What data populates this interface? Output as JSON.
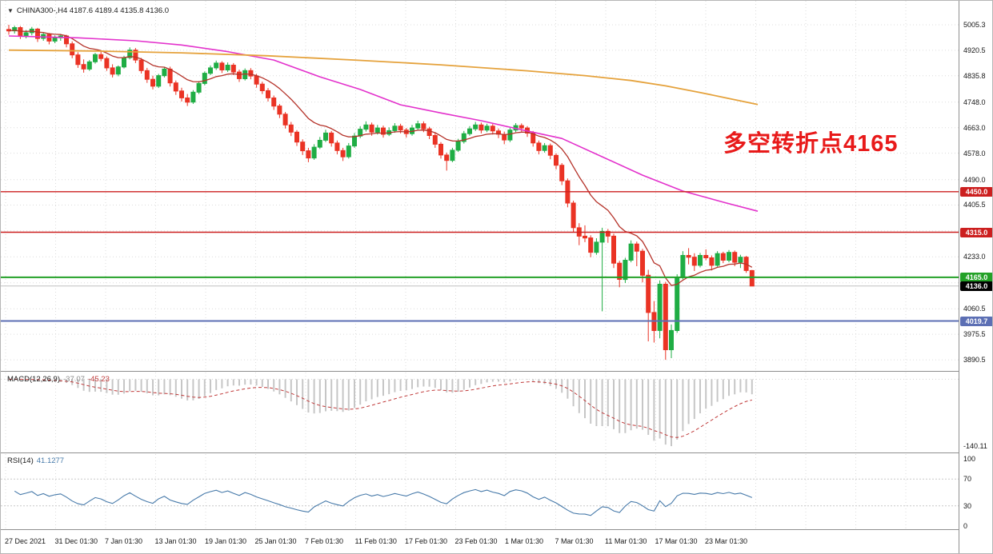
{
  "colors": {
    "up": "#1fad44",
    "down": "#ea3324",
    "ma_fast": "#b5332a",
    "ma_mid": "#e332cc",
    "ma_slow": "#e5a23c",
    "grid": "#dcdcdc",
    "current_line": "#c0c0c0",
    "macd_hist": "#c6c6c6",
    "macd_signal": "#c03a3a",
    "rsi_line": "#4679a9",
    "annotation": "#e81a1a"
  },
  "header": {
    "marker": "▼",
    "symbol_info": "CHINA300-,H4  4187.6 4189.4 4135.8 4136.0"
  },
  "annotation": {
    "text": "多空转折点4165"
  },
  "indicators": {
    "macd": {
      "label": "MACD(12,26,9)",
      "value_main": "-37.07",
      "value_signal": "-45.23",
      "axis_min_label": "-140.11"
    },
    "rsi": {
      "label": "RSI(14)",
      "value": "41.1277",
      "axis_labels": [
        "100",
        "70",
        "30",
        "0"
      ],
      "levels": [
        70,
        30
      ]
    }
  },
  "price_axis": {
    "ticks": [
      {
        "label": "5005.3",
        "price": 5005.3
      },
      {
        "label": "4920.5",
        "price": 4920.5
      },
      {
        "label": "4835.8",
        "price": 4835.8
      },
      {
        "label": "4748.0",
        "price": 4748.0
      },
      {
        "label": "4663.0",
        "price": 4663.0
      },
      {
        "label": "4578.0",
        "price": 4578.0
      },
      {
        "label": "4490.0",
        "price": 4490.0
      },
      {
        "label": "4405.5",
        "price": 4405.5
      },
      {
        "label": "4233.0",
        "price": 4233.0
      },
      {
        "label": "4060.5",
        "price": 4060.5
      },
      {
        "label": "3975.5",
        "price": 3975.5
      },
      {
        "label": "3890.5",
        "price": 3890.5
      }
    ],
    "tags": [
      {
        "label": "4450.0",
        "price": 4450.0,
        "bg": "#cc1f1f"
      },
      {
        "label": "4315.0",
        "price": 4315.0,
        "bg": "#cc1f1f"
      },
      {
        "label": "4165.0",
        "price": 4165.0,
        "bg": "#23a127"
      },
      {
        "label": "4136.0",
        "price": 4136.0,
        "bg": "#000000"
      },
      {
        "label": "4019.7",
        "price": 4019.7,
        "bg": "#5c6fb4"
      }
    ]
  },
  "time_axis": {
    "labels": [
      "27 Dec 2021",
      "31 Dec 01:30",
      "7 Jan 01:30",
      "13 Jan 01:30",
      "19 Jan 01:30",
      "25 Jan 01:30",
      "7 Feb 01:30",
      "11 Feb 01:30",
      "17 Feb 01:30",
      "23 Feb 01:30",
      "1 Mar 01:30",
      "7 Mar 01:30",
      "11 Mar 01:30",
      "17 Mar 01:30",
      "23 Mar 01:30"
    ]
  },
  "chart_data": {
    "type": "candlestick",
    "symbol": "CHINA300-",
    "timeframe": "H4",
    "title": "CHINA300-,H4",
    "ohlc_last": {
      "open": 4187.6,
      "high": 4189.4,
      "low": 4135.8,
      "close": 4136.0
    },
    "current_price": 4136.0,
    "ylim": [
      3853.5,
      5085.1
    ],
    "grid_prices": [
      5005.3,
      4920.5,
      4835.8,
      4748.0,
      4663.0,
      4578.0,
      4490.0,
      4405.5,
      4319.3,
      4233.0,
      4146.8,
      4060.5,
      3975.5,
      3890.5
    ],
    "levels": [
      {
        "price": 4450.0,
        "color": "#cc1f1f",
        "width": 1.4
      },
      {
        "price": 4315.0,
        "color": "#cc1f1f",
        "width": 1.4
      },
      {
        "price": 4165.0,
        "color": "#23a127",
        "width": 2
      },
      {
        "price": 4019.7,
        "color": "#5c6fb4",
        "width": 2
      }
    ],
    "ma_fast_period": 13,
    "macd_params": {
      "fast": 12,
      "slow": 26,
      "signal": 9
    },
    "rsi_period": 14,
    "ma_mid_points": [
      [
        0,
        4968
      ],
      [
        12,
        4962
      ],
      [
        22,
        4952
      ],
      [
        30,
        4938
      ],
      [
        38,
        4916
      ],
      [
        46,
        4888
      ],
      [
        54,
        4832
      ],
      [
        61,
        4790
      ],
      [
        68,
        4739
      ],
      [
        75,
        4712
      ],
      [
        82,
        4686
      ],
      [
        89,
        4656
      ],
      [
        96,
        4627
      ],
      [
        103,
        4566
      ],
      [
        110,
        4505
      ],
      [
        117,
        4452
      ],
      [
        124,
        4415
      ],
      [
        130,
        4385
      ]
    ],
    "ma_slow_points": [
      [
        0,
        4921
      ],
      [
        15,
        4918
      ],
      [
        30,
        4912
      ],
      [
        45,
        4902
      ],
      [
        60,
        4888
      ],
      [
        75,
        4872
      ],
      [
        90,
        4852
      ],
      [
        100,
        4836
      ],
      [
        108,
        4820
      ],
      [
        114,
        4802
      ],
      [
        120,
        4780
      ],
      [
        125,
        4760
      ],
      [
        130,
        4740
      ]
    ],
    "candles": [
      [
        4990,
        5005.3,
        4972,
        4985
      ],
      [
        4985,
        5002,
        4976,
        4996
      ],
      [
        4996,
        5001,
        4958,
        4968
      ],
      [
        4968,
        4988,
        4960,
        4979
      ],
      [
        4979,
        4998,
        4970,
        4991
      ],
      [
        4991,
        4995,
        4948,
        4960
      ],
      [
        4960,
        4981,
        4952,
        4973
      ],
      [
        4973,
        4978,
        4940,
        4951
      ],
      [
        4951,
        4970,
        4944,
        4962
      ],
      [
        4962,
        4975,
        4952,
        4968
      ],
      [
        4968,
        4972,
        4930,
        4942
      ],
      [
        4942,
        4950,
        4894,
        4905
      ],
      [
        4905,
        4914,
        4862,
        4873
      ],
      [
        4873,
        4890,
        4846,
        4858
      ],
      [
        4858,
        4888,
        4852,
        4882
      ],
      [
        4882,
        4912,
        4876,
        4906
      ],
      [
        4906,
        4916,
        4884,
        4893
      ],
      [
        4893,
        4900,
        4852,
        4862
      ],
      [
        4862,
        4874,
        4830,
        4841
      ],
      [
        4841,
        4870,
        4834,
        4865
      ],
      [
        4865,
        4902,
        4860,
        4896
      ],
      [
        4896,
        4930,
        4890,
        4921
      ],
      [
        4921,
        4928,
        4878,
        4888
      ],
      [
        4888,
        4895,
        4843,
        4853
      ],
      [
        4853,
        4862,
        4812,
        4824
      ],
      [
        4824,
        4836,
        4790,
        4801
      ],
      [
        4801,
        4842,
        4795,
        4836
      ],
      [
        4836,
        4865,
        4830,
        4858
      ],
      [
        4858,
        4866,
        4800,
        4812
      ],
      [
        4812,
        4820,
        4772,
        4785
      ],
      [
        4785,
        4796,
        4750,
        4762
      ],
      [
        4762,
        4775,
        4735,
        4748
      ],
      [
        4748,
        4788,
        4742,
        4781
      ],
      [
        4781,
        4818,
        4775,
        4810
      ],
      [
        4810,
        4850,
        4804,
        4844
      ],
      [
        4844,
        4870,
        4838,
        4862
      ],
      [
        4862,
        4886,
        4855,
        4878
      ],
      [
        4878,
        4884,
        4845,
        4855
      ],
      [
        4855,
        4880,
        4848,
        4871
      ],
      [
        4871,
        4878,
        4838,
        4848
      ],
      [
        4848,
        4856,
        4815,
        4826
      ],
      [
        4826,
        4860,
        4820,
        4853
      ],
      [
        4853,
        4861,
        4824,
        4835
      ],
      [
        4835,
        4842,
        4796,
        4808
      ],
      [
        4808,
        4816,
        4775,
        4786
      ],
      [
        4786,
        4795,
        4750,
        4762
      ],
      [
        4762,
        4770,
        4722,
        4735
      ],
      [
        4735,
        4742,
        4695,
        4708
      ],
      [
        4708,
        4715,
        4660,
        4672
      ],
      [
        4672,
        4682,
        4635,
        4648
      ],
      [
        4648,
        4655,
        4602,
        4615
      ],
      [
        4615,
        4624,
        4572,
        4586
      ],
      [
        4586,
        4596,
        4548,
        4562
      ],
      [
        4562,
        4608,
        4556,
        4598
      ],
      [
        4598,
        4632,
        4592,
        4621
      ],
      [
        4621,
        4656,
        4615,
        4645
      ],
      [
        4645,
        4652,
        4600,
        4612
      ],
      [
        4612,
        4620,
        4574,
        4587
      ],
      [
        4587,
        4596,
        4552,
        4566
      ],
      [
        4566,
        4612,
        4560,
        4602
      ],
      [
        4602,
        4645,
        4596,
        4635
      ],
      [
        4635,
        4668,
        4628,
        4658
      ],
      [
        4658,
        4684,
        4650,
        4672
      ],
      [
        4672,
        4680,
        4636,
        4648
      ],
      [
        4648,
        4672,
        4640,
        4662
      ],
      [
        4662,
        4670,
        4630,
        4641
      ],
      [
        4641,
        4664,
        4635,
        4653
      ],
      [
        4653,
        4678,
        4646,
        4668
      ],
      [
        4668,
        4676,
        4644,
        4655
      ],
      [
        4655,
        4662,
        4630,
        4643
      ],
      [
        4643,
        4672,
        4636,
        4662
      ],
      [
        4662,
        4686,
        4655,
        4676
      ],
      [
        4676,
        4684,
        4648,
        4659
      ],
      [
        4659,
        4666,
        4625,
        4637
      ],
      [
        4637,
        4645,
        4596,
        4608
      ],
      [
        4608,
        4615,
        4560,
        4572
      ],
      [
        4572,
        4580,
        4520,
        4554
      ],
      [
        4554,
        4596,
        4548,
        4588
      ],
      [
        4588,
        4626,
        4582,
        4617
      ],
      [
        4617,
        4652,
        4610,
        4643
      ],
      [
        4643,
        4668,
        4636,
        4659
      ],
      [
        4659,
        4682,
        4652,
        4672
      ],
      [
        4672,
        4680,
        4644,
        4655
      ],
      [
        4655,
        4676,
        4648,
        4668
      ],
      [
        4668,
        4675,
        4640,
        4652
      ],
      [
        4652,
        4660,
        4628,
        4641
      ],
      [
        4641,
        4650,
        4608,
        4622
      ],
      [
        4622,
        4662,
        4615,
        4655
      ],
      [
        4655,
        4678,
        4648,
        4670
      ],
      [
        4670,
        4677,
        4650,
        4662
      ],
      [
        4662,
        4668,
        4632,
        4645
      ],
      [
        4645,
        4652,
        4600,
        4612
      ],
      [
        4612,
        4620,
        4574,
        4587
      ],
      [
        4587,
        4612,
        4580,
        4603
      ],
      [
        4603,
        4610,
        4558,
        4571
      ],
      [
        4571,
        4578,
        4524,
        4538
      ],
      [
        4538,
        4545,
        4472,
        4486
      ],
      [
        4486,
        4494,
        4398,
        4412
      ],
      [
        4412,
        4420,
        4315,
        4330
      ],
      [
        4330,
        4345,
        4272,
        4302
      ],
      [
        4302,
        4338,
        4282,
        4296
      ],
      [
        4296,
        4305,
        4232,
        4248
      ],
      [
        4248,
        4295,
        4240,
        4282
      ],
      [
        4282,
        4330,
        4052,
        4318
      ],
      [
        4318,
        4326,
        4280,
        4302
      ],
      [
        4302,
        4310,
        4196,
        4212
      ],
      [
        4212,
        4220,
        4132,
        4158
      ],
      [
        4158,
        4230,
        4146,
        4222
      ],
      [
        4222,
        4288,
        4215,
        4276
      ],
      [
        4276,
        4284,
        4202,
        4252
      ],
      [
        4252,
        4260,
        4148,
        4172
      ],
      [
        4172,
        4190,
        3952,
        4048
      ],
      [
        4048,
        4086,
        3948,
        3988
      ],
      [
        3988,
        4155,
        3962,
        4142
      ],
      [
        4142,
        4150,
        3890.5,
        3924
      ],
      [
        3924,
        4008,
        3896,
        3988
      ],
      [
        3988,
        4175,
        3980,
        4164
      ],
      [
        4164,
        4252,
        4158,
        4238
      ],
      [
        4238,
        4262,
        4208,
        4232
      ],
      [
        4232,
        4245,
        4186,
        4205
      ],
      [
        4205,
        4246,
        4198,
        4238
      ],
      [
        4238,
        4258,
        4222,
        4230
      ],
      [
        4230,
        4238,
        4188,
        4205
      ],
      [
        4205,
        4252,
        4200,
        4244
      ],
      [
        4244,
        4250,
        4212,
        4222
      ],
      [
        4222,
        4256,
        4215,
        4248
      ],
      [
        4248,
        4254,
        4202,
        4215
      ],
      [
        4215,
        4240,
        4196,
        4232
      ],
      [
        4232,
        4236,
        4180,
        4187.6
      ],
      [
        4187.6,
        4189.4,
        4135.8,
        4136.0
      ]
    ]
  }
}
